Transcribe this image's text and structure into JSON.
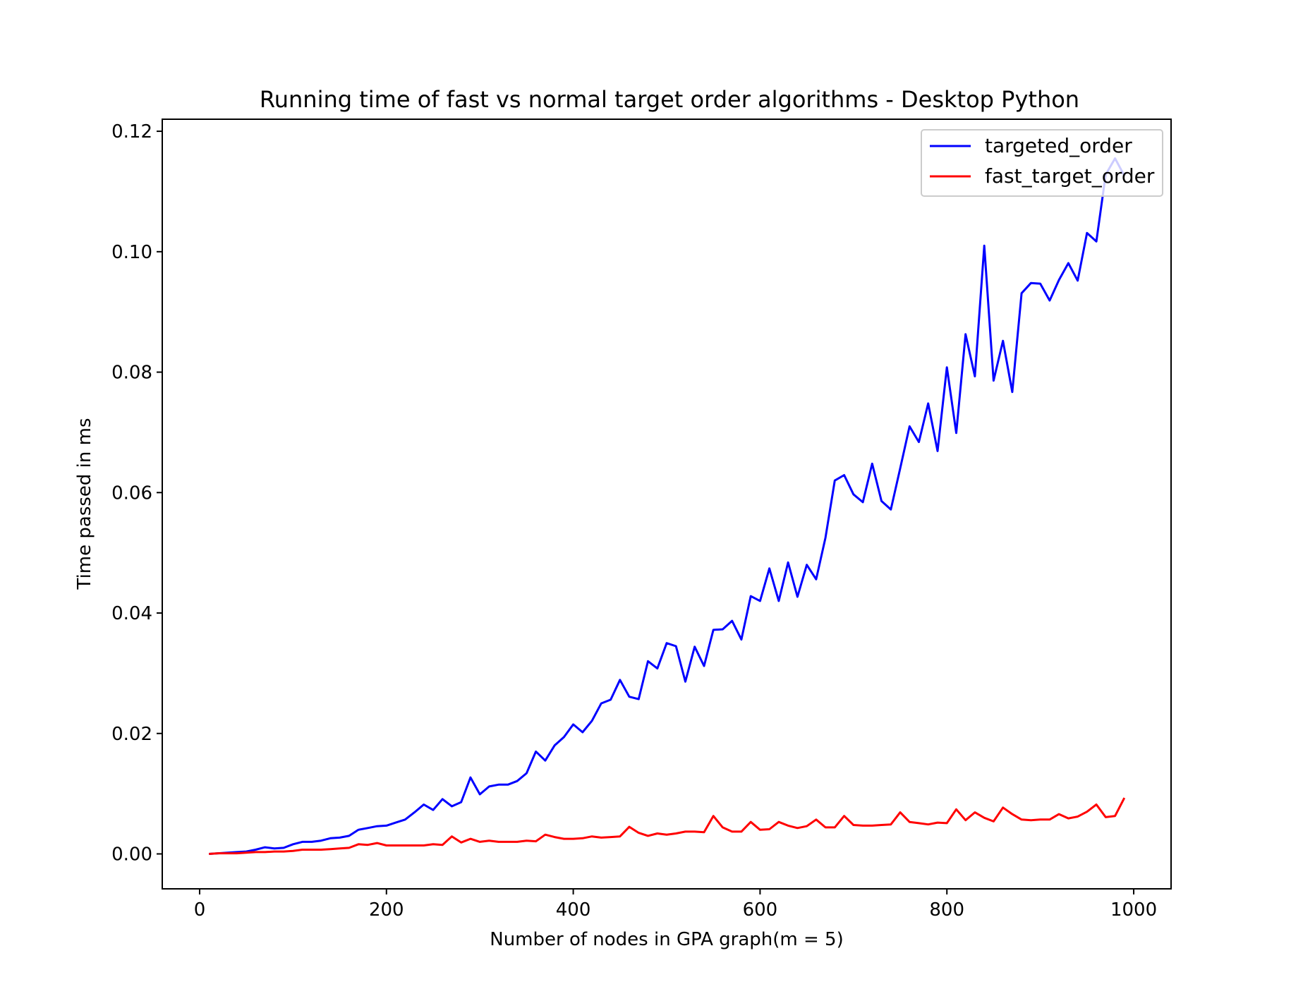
{
  "chart_data": {
    "type": "line",
    "title": "Running time of fast vs normal target order algorithms - Desktop Python",
    "xlabel": "Number of nodes in GPA graph(m = 5)",
    "ylabel": "Time passed in ms",
    "xlim": [
      -40,
      1040
    ],
    "ylim": [
      -0.0058,
      0.122
    ],
    "xticks": [
      0,
      200,
      400,
      600,
      800,
      1000
    ],
    "xtick_labels": [
      "0",
      "200",
      "400",
      "600",
      "800",
      "1000"
    ],
    "yticks": [
      0.0,
      0.02,
      0.04,
      0.06,
      0.08,
      0.1,
      0.12
    ],
    "ytick_labels": [
      "0.00",
      "0.02",
      "0.04",
      "0.06",
      "0.08",
      "0.10",
      "0.12"
    ],
    "grid": false,
    "legend_position": "top-right",
    "x": [
      10,
      20,
      30,
      40,
      50,
      60,
      70,
      80,
      90,
      100,
      110,
      120,
      130,
      140,
      150,
      160,
      170,
      180,
      190,
      200,
      210,
      220,
      230,
      240,
      250,
      260,
      270,
      280,
      290,
      300,
      310,
      320,
      330,
      340,
      350,
      360,
      370,
      380,
      390,
      400,
      410,
      420,
      430,
      440,
      450,
      460,
      470,
      480,
      490,
      500,
      510,
      520,
      530,
      540,
      550,
      560,
      570,
      580,
      590,
      600,
      610,
      620,
      630,
      640,
      650,
      660,
      670,
      680,
      690,
      700,
      710,
      720,
      730,
      740,
      750,
      760,
      770,
      780,
      790,
      800,
      810,
      820,
      830,
      840,
      850,
      860,
      870,
      880,
      890,
      900,
      910,
      920,
      930,
      940,
      950,
      960,
      970,
      980,
      990
    ],
    "series": [
      {
        "name": "targeted_order",
        "color": "#0000ff",
        "values": [
          0.0,
          0.0001,
          0.0002,
          0.0003,
          0.0004,
          0.0007,
          0.0011,
          0.0009,
          0.001,
          0.0016,
          0.002,
          0.002,
          0.0022,
          0.0026,
          0.0027,
          0.003,
          0.004,
          0.0043,
          0.0046,
          0.0047,
          0.0052,
          0.0057,
          0.0069,
          0.0082,
          0.0073,
          0.0091,
          0.0079,
          0.0086,
          0.0127,
          0.0099,
          0.0112,
          0.0115,
          0.0115,
          0.0121,
          0.0134,
          0.017,
          0.0155,
          0.018,
          0.0194,
          0.0215,
          0.0202,
          0.0221,
          0.025,
          0.0256,
          0.0289,
          0.0261,
          0.0257,
          0.032,
          0.0308,
          0.035,
          0.0345,
          0.0286,
          0.0344,
          0.0312,
          0.0372,
          0.0373,
          0.0387,
          0.0356,
          0.0428,
          0.042,
          0.0474,
          0.042,
          0.0484,
          0.0427,
          0.048,
          0.0456,
          0.0525,
          0.062,
          0.0629,
          0.0597,
          0.0584,
          0.0648,
          0.0586,
          0.0572,
          0.064,
          0.071,
          0.0684,
          0.0748,
          0.0669,
          0.0808,
          0.0699,
          0.0863,
          0.0793,
          0.101,
          0.0786,
          0.0852,
          0.0767,
          0.0931,
          0.0948,
          0.0947,
          0.0919,
          0.0953,
          0.0981,
          0.0952,
          0.1031,
          0.1017,
          0.1128,
          0.1155,
          0.1126
        ]
      },
      {
        "name": "fast_target_order",
        "color": "#ff0000",
        "values": [
          0.0,
          0.0001,
          0.0001,
          0.0001,
          0.0002,
          0.0003,
          0.0003,
          0.0004,
          0.0004,
          0.0005,
          0.0007,
          0.0007,
          0.0007,
          0.0008,
          0.0009,
          0.001,
          0.0016,
          0.0015,
          0.0018,
          0.0014,
          0.0014,
          0.0014,
          0.0014,
          0.0014,
          0.0016,
          0.0015,
          0.0029,
          0.0019,
          0.0025,
          0.002,
          0.0022,
          0.002,
          0.002,
          0.002,
          0.0022,
          0.0021,
          0.0032,
          0.0028,
          0.0025,
          0.0025,
          0.0026,
          0.0029,
          0.0027,
          0.0028,
          0.0029,
          0.0045,
          0.0035,
          0.003,
          0.0034,
          0.0032,
          0.0034,
          0.0037,
          0.0037,
          0.0036,
          0.0063,
          0.0044,
          0.0037,
          0.0037,
          0.0053,
          0.004,
          0.0041,
          0.0053,
          0.0047,
          0.0043,
          0.0046,
          0.0057,
          0.0044,
          0.0044,
          0.0063,
          0.0048,
          0.0047,
          0.0047,
          0.0048,
          0.0049,
          0.0069,
          0.0053,
          0.0051,
          0.0049,
          0.0052,
          0.0051,
          0.0074,
          0.0056,
          0.0069,
          0.006,
          0.0054,
          0.0077,
          0.0066,
          0.0057,
          0.0056,
          0.0057,
          0.0057,
          0.0066,
          0.0059,
          0.0062,
          0.007,
          0.0082,
          0.0061,
          0.0063,
          0.0093
        ]
      }
    ]
  }
}
